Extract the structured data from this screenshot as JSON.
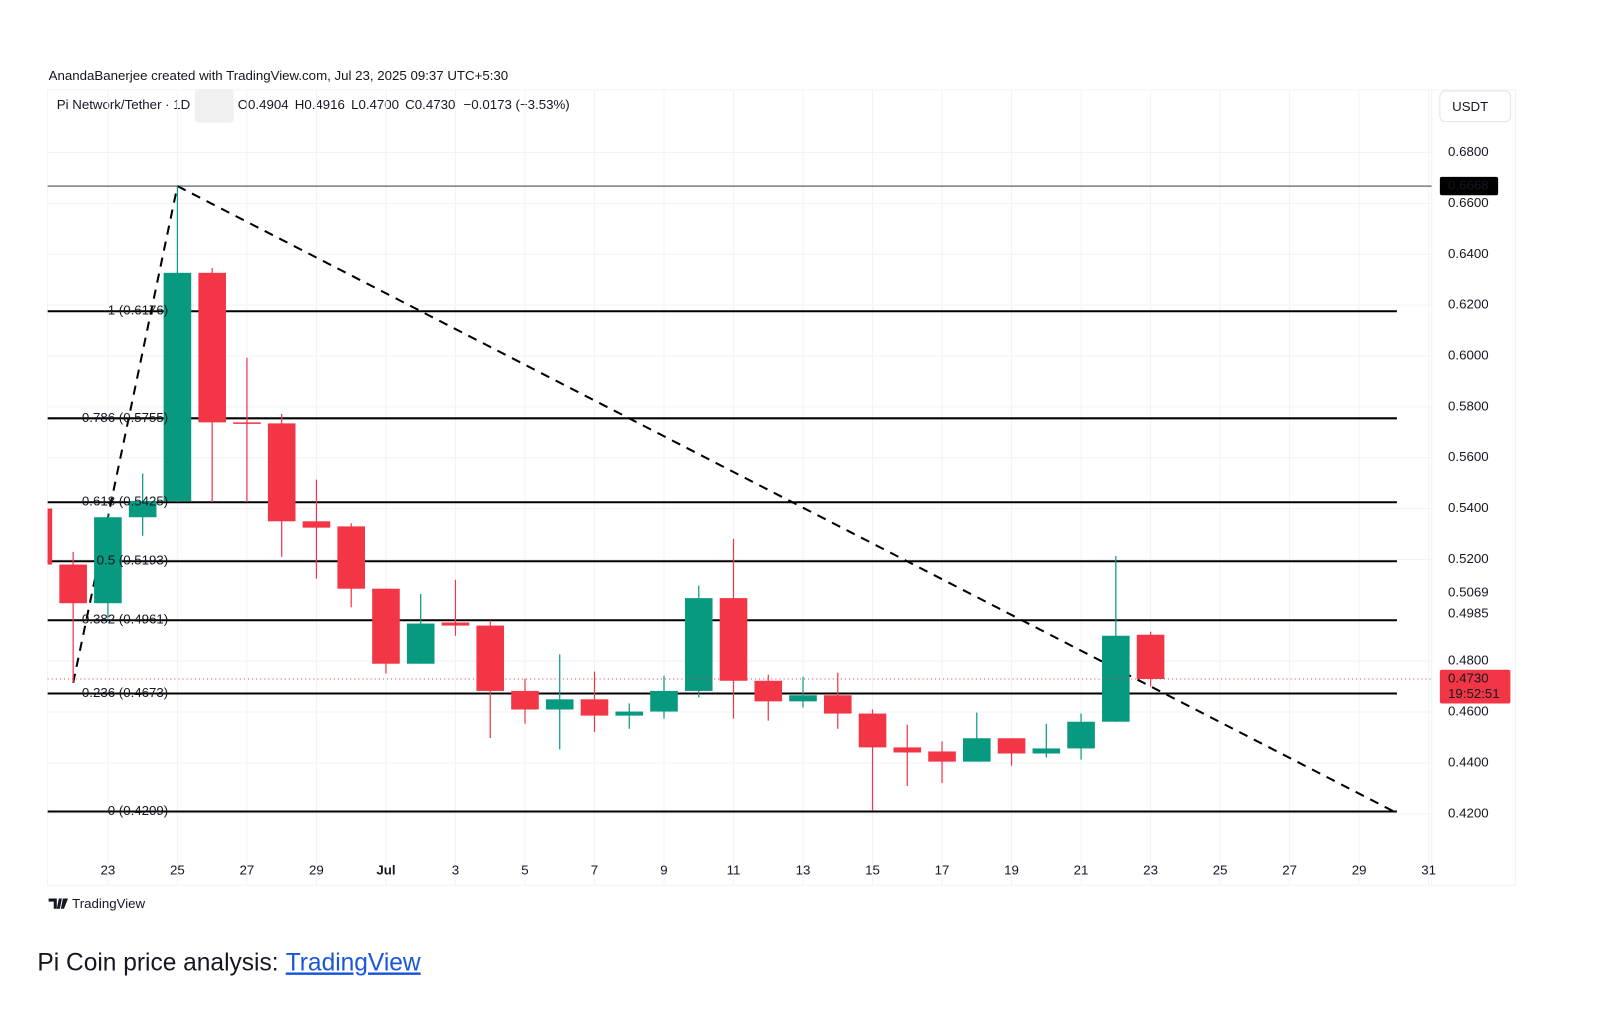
{
  "header": {
    "attribution": "AnandaBanerjee created with TradingView.com, Jul 23, 2025 09:37 UTC+5:30",
    "symbol": "Pi Network/Tether · 1D",
    "ohlc": [
      {
        "key": "O",
        "value": "0.4904"
      },
      {
        "key": "H",
        "value": "0.4916"
      },
      {
        "key": "L",
        "value": "0.4700"
      },
      {
        "key": "C",
        "value": "0.4730"
      }
    ],
    "change": "−0.0173 (−3.53%)",
    "currency": "USDT"
  },
  "chart_data": {
    "type": "candlestick",
    "categories": [
      null,
      null,
      "23",
      null,
      "25",
      null,
      "27",
      null,
      "29",
      null,
      "Jul",
      null,
      "3",
      null,
      "5",
      null,
      "7",
      null,
      "9",
      null,
      "11",
      null,
      "13",
      null,
      "15",
      null,
      "17",
      null,
      "19",
      null,
      "21",
      null,
      "23",
      null,
      "25",
      null,
      "27",
      null,
      "29",
      null,
      "31"
    ],
    "open": [
      0.54,
      0.518,
      0.5028,
      0.5366,
      0.543,
      0.6327,
      0.5739,
      0.5735,
      0.535,
      0.533,
      0.5085,
      0.479,
      0.4952,
      0.494,
      0.4683,
      0.461,
      0.465,
      0.4586,
      0.4602,
      0.4683,
      0.5048,
      0.4723,
      0.4642,
      0.4666,
      0.4594,
      0.4461,
      0.4445,
      0.4405,
      0.4497,
      0.4437,
      0.4457,
      0.4562,
      0.4904,
      null,
      null,
      null,
      null,
      null,
      null,
      null,
      null
    ],
    "high": [
      0.54,
      0.523,
      0.538,
      0.5538,
      0.6668,
      0.6346,
      0.5993,
      0.5772,
      0.5514,
      0.5342,
      0.5085,
      0.5064,
      0.512,
      0.496,
      0.4731,
      0.4827,
      0.4759,
      0.4634,
      0.4743,
      0.5097,
      0.5281,
      0.4747,
      0.4739,
      0.4755,
      0.461,
      0.455,
      0.4485,
      0.4598,
      0.4497,
      0.4554,
      0.4594,
      0.5213,
      0.4916,
      null,
      null,
      null,
      null,
      null,
      null,
      null,
      null
    ],
    "low": [
      0.518,
      0.4715,
      0.4968,
      0.5293,
      0.5426,
      0.5426,
      0.5426,
      0.521,
      0.5124,
      0.5012,
      0.4751,
      0.479,
      0.49,
      0.4498,
      0.4554,
      0.4453,
      0.4522,
      0.4534,
      0.4574,
      0.4658,
      0.4574,
      0.4566,
      0.4618,
      0.4534,
      0.4212,
      0.4309,
      0.4321,
      0.4405,
      0.4389,
      0.4421,
      0.4413,
      0.4562,
      0.47,
      null,
      null,
      null,
      null,
      null,
      null,
      null,
      null
    ],
    "close": [
      0.518,
      0.5028,
      0.5366,
      0.543,
      0.6327,
      0.5739,
      0.5735,
      0.535,
      0.5325,
      0.5085,
      0.479,
      0.4948,
      0.494,
      0.4683,
      0.461,
      0.465,
      0.4586,
      0.4602,
      0.4683,
      0.5048,
      0.4723,
      0.4642,
      0.4666,
      0.4594,
      0.4461,
      0.4441,
      0.4405,
      0.4497,
      0.4437,
      0.4457,
      0.4562,
      0.49,
      0.473,
      null,
      null,
      null,
      null,
      null,
      null,
      null,
      null
    ],
    "up_color": "#089981",
    "down_color": "#f23645",
    "ylim": [
      0.3919,
      0.7046
    ],
    "yticks": [
      {
        "value": 0.68,
        "label": "0.6800"
      },
      {
        "value": 0.66,
        "label": "0.6600"
      },
      {
        "value": 0.64,
        "label": "0.6400"
      },
      {
        "value": 0.62,
        "label": "0.6200"
      },
      {
        "value": 0.6,
        "label": "0.6000"
      },
      {
        "value": 0.58,
        "label": "0.5800"
      },
      {
        "value": 0.56,
        "label": "0.5600"
      },
      {
        "value": 0.54,
        "label": "0.5400"
      },
      {
        "value": 0.52,
        "label": "0.5200"
      },
      {
        "value": 0.48,
        "label": "0.4800"
      },
      {
        "value": 0.46,
        "label": "0.4600"
      },
      {
        "value": 0.44,
        "label": "0.4400"
      },
      {
        "value": 0.42,
        "label": "0.4200"
      }
    ],
    "price_labels": [
      0.5069,
      0.4985
    ],
    "grid": true,
    "high_line": 0.6668,
    "last_price": {
      "value": 0.473,
      "label": "0.4730",
      "countdown": "19:52:51"
    },
    "fib_levels": [
      {
        "label": "1 (0.6176)",
        "value": 0.6176
      },
      {
        "label": "0.786 (0.5755)",
        "value": 0.5755
      },
      {
        "label": "0.618 (0.5425)",
        "value": 0.5425
      },
      {
        "label": "0.5 (0.5193)",
        "value": 0.5193
      },
      {
        "label": "0.382 (0.4961)",
        "value": 0.4961
      },
      {
        "label": "0.236 (0.4673)",
        "value": 0.4673
      },
      {
        "label": "0 (0.4209)",
        "value": 0.4209
      }
    ],
    "trendlines": [
      {
        "x": [
          1,
          4
        ],
        "y": [
          0.4715,
          0.6668
        ]
      },
      {
        "x": [
          4,
          39
        ],
        "y": [
          0.6668,
          0.4209
        ]
      }
    ]
  },
  "footer": {
    "logo": "TradingView",
    "caption": "Pi Coin price analysis:",
    "link": "TradingView"
  }
}
